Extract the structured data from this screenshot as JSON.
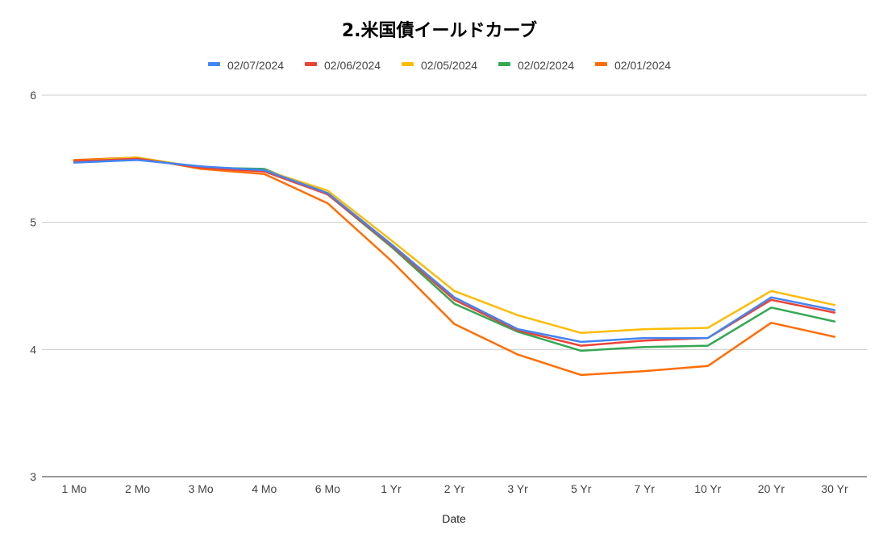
{
  "chart_data": {
    "type": "line",
    "title": "2.米国債イールドカーブ",
    "xlabel": "Date",
    "ylabel": "",
    "categories": [
      "1 Mo",
      "2 Mo",
      "3 Mo",
      "4 Mo",
      "6 Mo",
      "1 Yr",
      "2 Yr",
      "3 Yr",
      "5 Yr",
      "7 Yr",
      "10 Yr",
      "20 Yr",
      "30 Yr"
    ],
    "ylim": [
      3,
      6
    ],
    "yticks": [
      "3",
      "4",
      "5",
      "6"
    ],
    "grid": true,
    "legend_position": "top",
    "series": [
      {
        "name": "02/07/2024",
        "color": "#4285f4",
        "values": [
          5.47,
          5.49,
          5.44,
          5.41,
          5.23,
          4.83,
          4.41,
          4.16,
          4.06,
          4.09,
          4.09,
          4.41,
          4.31
        ]
      },
      {
        "name": "02/06/2024",
        "color": "#ea4335",
        "values": [
          5.48,
          5.5,
          5.43,
          5.4,
          5.22,
          4.82,
          4.39,
          4.15,
          4.03,
          4.07,
          4.09,
          4.39,
          4.29
        ]
      },
      {
        "name": "02/05/2024",
        "color": "#fbbc04",
        "values": [
          5.48,
          5.51,
          5.43,
          5.41,
          5.25,
          4.86,
          4.46,
          4.27,
          4.13,
          4.16,
          4.17,
          4.46,
          4.35
        ]
      },
      {
        "name": "02/02/2024",
        "color": "#34a853",
        "values": [
          5.48,
          5.51,
          5.43,
          5.42,
          5.22,
          4.81,
          4.36,
          4.14,
          3.99,
          4.02,
          4.03,
          4.33,
          4.22
        ]
      },
      {
        "name": "02/01/2024",
        "color": "#ff6d01",
        "values": [
          5.49,
          5.51,
          5.42,
          5.38,
          5.15,
          4.7,
          4.2,
          3.96,
          3.8,
          3.83,
          3.87,
          4.21,
          4.1
        ]
      }
    ]
  }
}
